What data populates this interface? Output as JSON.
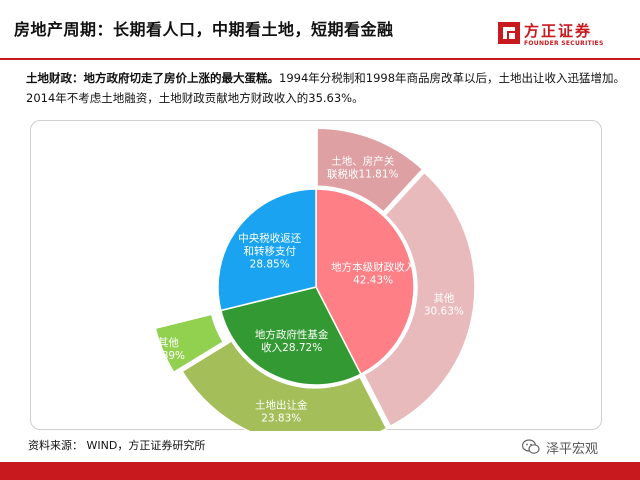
{
  "header": {
    "title": "房地产周期：长期看人口，中期看土地，短期看金融",
    "brand_name": "方正证券",
    "brand_sub": "FOUNDER SECURITIES"
  },
  "intro": {
    "lead": "土地财政：地方政府切走了房价上涨的最大蛋糕。",
    "body": "1994年分税制和1998年商品房改革以后，土地出让收入迅猛增加。2014年不考虑土地融资，土地财政贡献地方财政收入的35.63%。"
  },
  "chart_data": {
    "type": "pie",
    "subtype": "nested-donut",
    "title": "",
    "inner": [
      {
        "label": [
          "地方本级财政收入"
        ],
        "value": 42.43,
        "value_label": "42.43%",
        "color": "#ff7f86"
      },
      {
        "label": [
          "地方政府性基金",
          "收入"
        ],
        "value": 28.72,
        "value_label": "28.72%",
        "color": "#339933"
      },
      {
        "label": [
          "中央税收返还",
          "和转移支付"
        ],
        "value": 28.85,
        "value_label": "28.85%",
        "color": "#1aa3f0"
      }
    ],
    "outer": [
      {
        "label": [
          "土地、房产关",
          "联税收"
        ],
        "value": 11.81,
        "value_label": "11.81%",
        "color": "#dea0a3",
        "parent": 0
      },
      {
        "label": [
          "其他"
        ],
        "value": 30.63,
        "value_label": "30.63%",
        "color": "#e8babc",
        "parent": 0
      },
      {
        "label": [
          "土地出让金"
        ],
        "value": 23.83,
        "value_label": "23.83%",
        "color": "#a4be5a",
        "parent": 1
      },
      {
        "label": [
          "其他"
        ],
        "value": 4.89,
        "value_label": "4.89%",
        "color": "#92d050",
        "parent": 1
      }
    ]
  },
  "footer": {
    "source": "资料来源： WIND，方正证券研究所",
    "watermark": "泽平宏观"
  },
  "colors": {
    "brand_red": "#c8191f",
    "text": "#111111"
  },
  "icons": {
    "brand": "founder-logo-icon",
    "watermark": "wechat-icon"
  }
}
